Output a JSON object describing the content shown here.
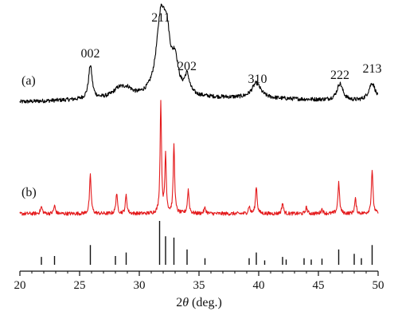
{
  "chart_data": {
    "type": "line",
    "xlabel_prefix": "2",
    "xlabel_theta": "θ",
    "xlabel_suffix": " (deg.)",
    "xlim": [
      20,
      50
    ],
    "x_ticks": [
      20,
      25,
      30,
      35,
      40,
      45,
      50
    ],
    "grid": false,
    "series": [
      {
        "name": "(a)",
        "color": "#000000",
        "noise": 0.06,
        "peaks": [
          {
            "x": 25.9,
            "h": 1.0,
            "w": 0.18
          },
          {
            "x": 28.3,
            "h": 0.25,
            "w": 0.6
          },
          {
            "x": 29.0,
            "h": 0.2,
            "w": 0.5
          },
          {
            "x": 31.8,
            "h": 2.2,
            "w": 0.45
          },
          {
            "x": 32.3,
            "h": 1.4,
            "w": 0.35
          },
          {
            "x": 33.0,
            "h": 0.9,
            "w": 0.3
          },
          {
            "x": 34.0,
            "h": 0.55,
            "w": 0.25
          },
          {
            "x": 39.8,
            "h": 0.45,
            "w": 0.45
          },
          {
            "x": 46.8,
            "h": 0.5,
            "w": 0.3
          },
          {
            "x": 49.5,
            "h": 0.55,
            "w": 0.35
          }
        ]
      },
      {
        "name": "(b)",
        "color": "#e41a1c",
        "noise": 0.05,
        "peaks": [
          {
            "x": 21.8,
            "h": 0.18,
            "w": 0.1
          },
          {
            "x": 22.9,
            "h": 0.22,
            "w": 0.08
          },
          {
            "x": 25.9,
            "h": 1.05,
            "w": 0.08
          },
          {
            "x": 28.1,
            "h": 0.55,
            "w": 0.08
          },
          {
            "x": 28.9,
            "h": 0.5,
            "w": 0.08
          },
          {
            "x": 31.8,
            "h": 3.05,
            "w": 0.07
          },
          {
            "x": 32.2,
            "h": 1.6,
            "w": 0.07
          },
          {
            "x": 32.9,
            "h": 1.9,
            "w": 0.07
          },
          {
            "x": 34.1,
            "h": 0.65,
            "w": 0.08
          },
          {
            "x": 35.5,
            "h": 0.15,
            "w": 0.1
          },
          {
            "x": 39.2,
            "h": 0.2,
            "w": 0.08
          },
          {
            "x": 39.8,
            "h": 0.75,
            "w": 0.08
          },
          {
            "x": 42.0,
            "h": 0.3,
            "w": 0.08
          },
          {
            "x": 44.0,
            "h": 0.18,
            "w": 0.08
          },
          {
            "x": 45.3,
            "h": 0.12,
            "w": 0.1
          },
          {
            "x": 46.7,
            "h": 0.85,
            "w": 0.08
          },
          {
            "x": 48.1,
            "h": 0.4,
            "w": 0.08
          },
          {
            "x": 49.5,
            "h": 1.2,
            "w": 0.08
          }
        ]
      }
    ],
    "reference_lines": [
      {
        "x": 21.8,
        "h": 0.18
      },
      {
        "x": 22.9,
        "h": 0.2
      },
      {
        "x": 25.9,
        "h": 0.45
      },
      {
        "x": 28.0,
        "h": 0.2
      },
      {
        "x": 28.9,
        "h": 0.28
      },
      {
        "x": 31.7,
        "h": 1.0
      },
      {
        "x": 32.2,
        "h": 0.65
      },
      {
        "x": 32.9,
        "h": 0.62
      },
      {
        "x": 34.0,
        "h": 0.35
      },
      {
        "x": 35.5,
        "h": 0.15
      },
      {
        "x": 39.2,
        "h": 0.15
      },
      {
        "x": 39.8,
        "h": 0.28
      },
      {
        "x": 40.5,
        "h": 0.1
      },
      {
        "x": 42.0,
        "h": 0.18
      },
      {
        "x": 42.3,
        "h": 0.12
      },
      {
        "x": 43.8,
        "h": 0.15
      },
      {
        "x": 44.4,
        "h": 0.12
      },
      {
        "x": 45.3,
        "h": 0.14
      },
      {
        "x": 46.7,
        "h": 0.35
      },
      {
        "x": 48.0,
        "h": 0.25
      },
      {
        "x": 48.6,
        "h": 0.15
      },
      {
        "x": 49.5,
        "h": 0.45
      }
    ],
    "annotations": [
      {
        "text": "002",
        "x": 25.9
      },
      {
        "text": "211",
        "x": 31.8
      },
      {
        "text": "202",
        "x": 34.0
      },
      {
        "text": "310",
        "x": 39.9
      },
      {
        "text": "222",
        "x": 46.8
      },
      {
        "text": "213",
        "x": 49.5
      }
    ]
  }
}
